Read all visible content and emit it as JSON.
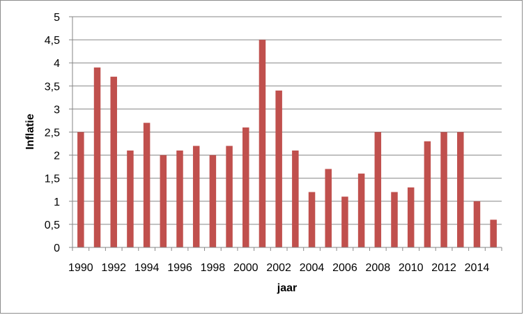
{
  "chart_data": {
    "type": "bar",
    "xlabel": "jaar",
    "ylabel": "Inflatie",
    "ylim": [
      0,
      5
    ],
    "y_ticks": [
      "0",
      "0,5",
      "1",
      "1,5",
      "2",
      "2,5",
      "3",
      "3,5",
      "4",
      "4,5",
      "5"
    ],
    "x_tick_labels": [
      "1990",
      "1992",
      "1994",
      "1996",
      "1998",
      "2000",
      "2002",
      "2004",
      "2006",
      "2008",
      "2010",
      "2012",
      "2014"
    ],
    "categories": [
      "1990",
      "1991",
      "1992",
      "1993",
      "1994",
      "1995",
      "1996",
      "1997",
      "1998",
      "1999",
      "2000",
      "2001",
      "2002",
      "2003",
      "2004",
      "2005",
      "2006",
      "2007",
      "2008",
      "2009",
      "2010",
      "2011",
      "2012",
      "2013",
      "2014",
      "2015"
    ],
    "values": [
      2.5,
      3.9,
      3.7,
      2.1,
      2.7,
      2.0,
      2.1,
      2.2,
      2.0,
      2.2,
      2.6,
      4.5,
      3.4,
      2.1,
      1.2,
      1.7,
      1.1,
      1.6,
      2.5,
      1.2,
      1.3,
      2.3,
      2.5,
      2.5,
      1.0,
      0.6
    ],
    "grid": true,
    "legend": "none",
    "bar_color": "#c0504d",
    "gridline_color": "#868686"
  }
}
